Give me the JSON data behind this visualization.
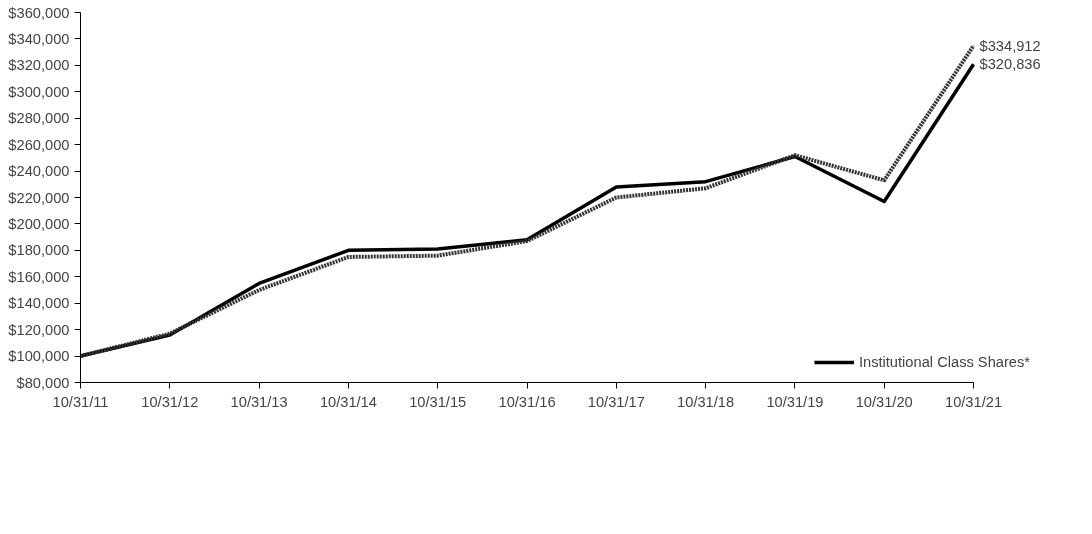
{
  "chart_data": {
    "type": "line",
    "categories": [
      "10/31/11",
      "10/31/12",
      "10/31/13",
      "10/31/14",
      "10/31/15",
      "10/31/16",
      "10/31/17",
      "10/31/18",
      "10/31/19",
      "10/31/20",
      "10/31/21"
    ],
    "series": [
      {
        "name": "Institutional Class Shares*",
        "color": "#000000",
        "line_style": "solid",
        "values": [
          100000,
          116000,
          155000,
          180000,
          181000,
          188000,
          228000,
          232000,
          251000,
          217000,
          320836
        ]
      },
      {
        "color": "#333333",
        "line_style": "dotted",
        "values": [
          100000,
          117000,
          150000,
          175000,
          176000,
          187000,
          220000,
          227000,
          252000,
          233000,
          334912
        ]
      }
    ],
    "ylim": [
      80000,
      360000
    ],
    "yticks": [
      {
        "value": 80000,
        "label": "$80,000"
      },
      {
        "value": 100000,
        "label": "$100,000"
      },
      {
        "value": 120000,
        "label": "$120,000"
      },
      {
        "value": 140000,
        "label": "$140,000"
      },
      {
        "value": 160000,
        "label": "$160,000"
      },
      {
        "value": 180000,
        "label": "$180,000"
      },
      {
        "value": 200000,
        "label": "$200,000"
      },
      {
        "value": 220000,
        "label": "$220,000"
      },
      {
        "value": 240000,
        "label": "$240,000"
      },
      {
        "value": 260000,
        "label": "$260,000"
      },
      {
        "value": 280000,
        "label": "$280,000"
      },
      {
        "value": 300000,
        "label": "$300,000"
      },
      {
        "value": 320000,
        "label": "$320,000"
      },
      {
        "value": 340000,
        "label": "$340,000"
      },
      {
        "value": 360000,
        "label": "$360,000"
      }
    ],
    "annotations": [
      {
        "text": "$334,912",
        "x": "10/31/21",
        "y": 334912
      },
      {
        "text": "$320,836",
        "x": "10/31/21",
        "y": 320836
      }
    ],
    "grid": false,
    "legend": "bottom",
    "marker": "none"
  }
}
